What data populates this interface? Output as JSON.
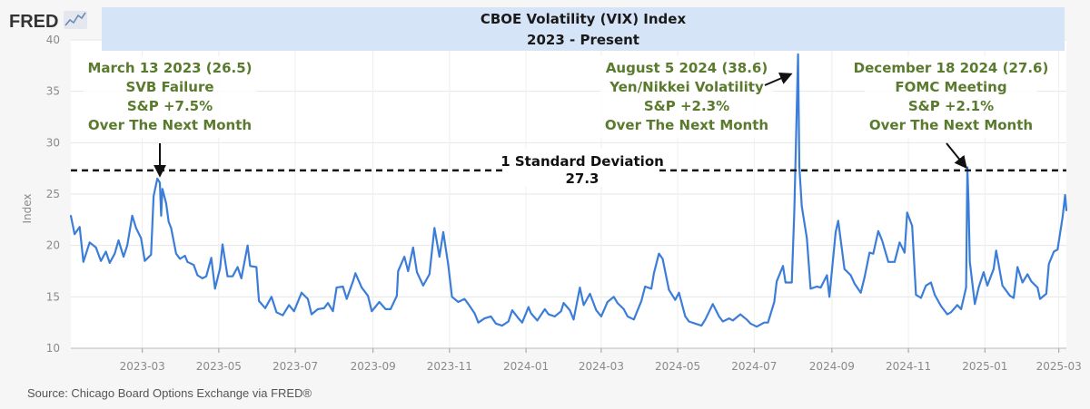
{
  "logo": {
    "text": "FRED"
  },
  "source": "Source: Chicago Board Options Exchange via FRED®",
  "chart_data": {
    "type": "line",
    "title": "CBOE Volatility (VIX) Index",
    "subtitle": "2023 - Present",
    "xlabel": "",
    "ylabel": "Index",
    "ylim": [
      10,
      40
    ],
    "xlim": [
      "2023-01-03",
      "2025-03-07"
    ],
    "yticks": [
      10,
      15,
      20,
      25,
      30,
      35,
      40
    ],
    "xticks": [
      {
        "date": "2023-03-01",
        "label": "2023-03"
      },
      {
        "date": "2023-05-01",
        "label": "2023-05"
      },
      {
        "date": "2023-07-01",
        "label": "2023-07"
      },
      {
        "date": "2023-09-01",
        "label": "2023-09"
      },
      {
        "date": "2023-11-01",
        "label": "2023-11"
      },
      {
        "date": "2024-01-01",
        "label": "2024-01"
      },
      {
        "date": "2024-03-01",
        "label": "2024-03"
      },
      {
        "date": "2024-05-01",
        "label": "2024-05"
      },
      {
        "date": "2024-07-01",
        "label": "2024-07"
      },
      {
        "date": "2024-09-01",
        "label": "2024-09"
      },
      {
        "date": "2024-11-01",
        "label": "2024-11"
      },
      {
        "date": "2025-01-01",
        "label": "2025-01"
      },
      {
        "date": "2025-03-01",
        "label": "2025-03"
      }
    ],
    "grid": true,
    "series": [
      {
        "name": "VIX",
        "color": "#3b7dd8",
        "points": [
          [
            "2023-01-03",
            22.9
          ],
          [
            "2023-01-06",
            21.1
          ],
          [
            "2023-01-10",
            21.8
          ],
          [
            "2023-01-13",
            18.4
          ],
          [
            "2023-01-18",
            20.3
          ],
          [
            "2023-01-23",
            19.8
          ],
          [
            "2023-01-27",
            18.5
          ],
          [
            "2023-01-31",
            19.4
          ],
          [
            "2023-02-03",
            18.3
          ],
          [
            "2023-02-07",
            19.2
          ],
          [
            "2023-02-10",
            20.5
          ],
          [
            "2023-02-14",
            18.9
          ],
          [
            "2023-02-17",
            20.0
          ],
          [
            "2023-02-21",
            22.9
          ],
          [
            "2023-02-24",
            21.7
          ],
          [
            "2023-02-28",
            20.7
          ],
          [
            "2023-03-03",
            18.5
          ],
          [
            "2023-03-08",
            19.1
          ],
          [
            "2023-03-10",
            24.8
          ],
          [
            "2023-03-13",
            26.5
          ],
          [
            "2023-03-15",
            26.1
          ],
          [
            "2023-03-16",
            22.9
          ],
          [
            "2023-03-17",
            25.5
          ],
          [
            "2023-03-20",
            24.1
          ],
          [
            "2023-03-22",
            22.3
          ],
          [
            "2023-03-24",
            21.7
          ],
          [
            "2023-03-28",
            19.2
          ],
          [
            "2023-03-31",
            18.7
          ],
          [
            "2023-04-04",
            19.0
          ],
          [
            "2023-04-06",
            18.4
          ],
          [
            "2023-04-11",
            18.1
          ],
          [
            "2023-04-14",
            17.1
          ],
          [
            "2023-04-18",
            16.8
          ],
          [
            "2023-04-21",
            17.0
          ],
          [
            "2023-04-25",
            18.8
          ],
          [
            "2023-04-28",
            15.8
          ],
          [
            "2023-05-02",
            17.8
          ],
          [
            "2023-05-04",
            20.1
          ],
          [
            "2023-05-08",
            17.0
          ],
          [
            "2023-05-12",
            17.0
          ],
          [
            "2023-05-16",
            17.9
          ],
          [
            "2023-05-19",
            16.8
          ],
          [
            "2023-05-24",
            20.0
          ],
          [
            "2023-05-26",
            18.0
          ],
          [
            "2023-05-31",
            17.9
          ],
          [
            "2023-06-02",
            14.6
          ],
          [
            "2023-06-07",
            13.9
          ],
          [
            "2023-06-12",
            15.0
          ],
          [
            "2023-06-16",
            13.5
          ],
          [
            "2023-06-21",
            13.2
          ],
          [
            "2023-06-26",
            14.2
          ],
          [
            "2023-06-30",
            13.6
          ],
          [
            "2023-07-06",
            15.4
          ],
          [
            "2023-07-11",
            14.8
          ],
          [
            "2023-07-14",
            13.3
          ],
          [
            "2023-07-19",
            13.8
          ],
          [
            "2023-07-24",
            13.9
          ],
          [
            "2023-07-27",
            14.4
          ],
          [
            "2023-07-31",
            13.6
          ],
          [
            "2023-08-03",
            15.9
          ],
          [
            "2023-08-08",
            16.0
          ],
          [
            "2023-08-11",
            14.8
          ],
          [
            "2023-08-16",
            16.5
          ],
          [
            "2023-08-18",
            17.3
          ],
          [
            "2023-08-23",
            15.9
          ],
          [
            "2023-08-28",
            15.1
          ],
          [
            "2023-08-31",
            13.6
          ],
          [
            "2023-09-06",
            14.5
          ],
          [
            "2023-09-11",
            13.8
          ],
          [
            "2023-09-15",
            13.8
          ],
          [
            "2023-09-20",
            15.1
          ],
          [
            "2023-09-21",
            17.5
          ],
          [
            "2023-09-26",
            18.9
          ],
          [
            "2023-09-29",
            17.5
          ],
          [
            "2023-10-03",
            19.8
          ],
          [
            "2023-10-06",
            17.4
          ],
          [
            "2023-10-11",
            16.1
          ],
          [
            "2023-10-16",
            17.2
          ],
          [
            "2023-10-20",
            21.7
          ],
          [
            "2023-10-24",
            18.9
          ],
          [
            "2023-10-27",
            21.3
          ],
          [
            "2023-10-31",
            18.1
          ],
          [
            "2023-11-03",
            15.0
          ],
          [
            "2023-11-08",
            14.5
          ],
          [
            "2023-11-13",
            14.8
          ],
          [
            "2023-11-16",
            14.3
          ],
          [
            "2023-11-21",
            13.4
          ],
          [
            "2023-11-24",
            12.5
          ],
          [
            "2023-11-29",
            12.9
          ],
          [
            "2023-12-04",
            13.1
          ],
          [
            "2023-12-08",
            12.4
          ],
          [
            "2023-12-13",
            12.2
          ],
          [
            "2023-12-18",
            12.6
          ],
          [
            "2023-12-21",
            13.7
          ],
          [
            "2023-12-26",
            12.9
          ],
          [
            "2023-12-29",
            12.5
          ],
          [
            "2024-01-03",
            14.0
          ],
          [
            "2024-01-05",
            13.4
          ],
          [
            "2024-01-10",
            12.7
          ],
          [
            "2024-01-16",
            13.8
          ],
          [
            "2024-01-19",
            13.3
          ],
          [
            "2024-01-24",
            13.1
          ],
          [
            "2024-01-29",
            13.6
          ],
          [
            "2024-01-31",
            14.4
          ],
          [
            "2024-02-05",
            13.7
          ],
          [
            "2024-02-08",
            12.8
          ],
          [
            "2024-02-13",
            15.9
          ],
          [
            "2024-02-16",
            14.2
          ],
          [
            "2024-02-21",
            15.3
          ],
          [
            "2024-02-26",
            13.7
          ],
          [
            "2024-03-01",
            13.1
          ],
          [
            "2024-03-06",
            14.5
          ],
          [
            "2024-03-11",
            15.0
          ],
          [
            "2024-03-14",
            14.4
          ],
          [
            "2024-03-19",
            13.8
          ],
          [
            "2024-03-22",
            13.1
          ],
          [
            "2024-03-27",
            12.8
          ],
          [
            "2024-04-02",
            14.6
          ],
          [
            "2024-04-05",
            16.0
          ],
          [
            "2024-04-10",
            15.8
          ],
          [
            "2024-04-12",
            17.3
          ],
          [
            "2024-04-16",
            19.2
          ],
          [
            "2024-04-19",
            18.7
          ],
          [
            "2024-04-24",
            15.7
          ],
          [
            "2024-04-29",
            14.7
          ],
          [
            "2024-05-02",
            15.4
          ],
          [
            "2024-05-07",
            13.1
          ],
          [
            "2024-05-10",
            12.6
          ],
          [
            "2024-05-15",
            12.4
          ],
          [
            "2024-05-20",
            12.2
          ],
          [
            "2024-05-23",
            12.8
          ],
          [
            "2024-05-29",
            14.3
          ],
          [
            "2024-06-03",
            13.1
          ],
          [
            "2024-06-06",
            12.6
          ],
          [
            "2024-06-11",
            12.9
          ],
          [
            "2024-06-14",
            12.7
          ],
          [
            "2024-06-20",
            13.3
          ],
          [
            "2024-06-25",
            12.8
          ],
          [
            "2024-06-28",
            12.4
          ],
          [
            "2024-07-03",
            12.1
          ],
          [
            "2024-07-09",
            12.5
          ],
          [
            "2024-07-12",
            12.5
          ],
          [
            "2024-07-17",
            14.5
          ],
          [
            "2024-07-19",
            16.5
          ],
          [
            "2024-07-24",
            18.0
          ],
          [
            "2024-07-26",
            16.4
          ],
          [
            "2024-07-31",
            16.4
          ],
          [
            "2024-08-02",
            23.4
          ],
          [
            "2024-08-05",
            38.6
          ],
          [
            "2024-08-06",
            27.7
          ],
          [
            "2024-08-08",
            23.8
          ],
          [
            "2024-08-12",
            20.7
          ],
          [
            "2024-08-15",
            15.8
          ],
          [
            "2024-08-20",
            16.0
          ],
          [
            "2024-08-23",
            15.9
          ],
          [
            "2024-08-28",
            17.1
          ],
          [
            "2024-08-30",
            15.0
          ],
          [
            "2024-09-04",
            21.3
          ],
          [
            "2024-09-06",
            22.4
          ],
          [
            "2024-09-11",
            17.7
          ],
          [
            "2024-09-16",
            17.1
          ],
          [
            "2024-09-19",
            16.3
          ],
          [
            "2024-09-24",
            15.4
          ],
          [
            "2024-09-27",
            16.9
          ],
          [
            "2024-10-01",
            19.3
          ],
          [
            "2024-10-04",
            19.2
          ],
          [
            "2024-10-08",
            21.4
          ],
          [
            "2024-10-11",
            20.5
          ],
          [
            "2024-10-16",
            18.4
          ],
          [
            "2024-10-21",
            18.4
          ],
          [
            "2024-10-25",
            20.3
          ],
          [
            "2024-10-29",
            19.3
          ],
          [
            "2024-10-31",
            23.2
          ],
          [
            "2024-11-04",
            21.9
          ],
          [
            "2024-11-07",
            15.2
          ],
          [
            "2024-11-11",
            14.9
          ],
          [
            "2024-11-15",
            16.1
          ],
          [
            "2024-11-19",
            16.4
          ],
          [
            "2024-11-22",
            15.2
          ],
          [
            "2024-11-27",
            14.1
          ],
          [
            "2024-12-02",
            13.3
          ],
          [
            "2024-12-05",
            13.5
          ],
          [
            "2024-12-10",
            14.2
          ],
          [
            "2024-12-13",
            13.8
          ],
          [
            "2024-12-17",
            15.9
          ],
          [
            "2024-12-18",
            27.6
          ],
          [
            "2024-12-19",
            24.1
          ],
          [
            "2024-12-20",
            18.4
          ],
          [
            "2024-12-24",
            14.3
          ],
          [
            "2024-12-27",
            15.9
          ],
          [
            "2024-12-31",
            17.4
          ],
          [
            "2025-01-03",
            16.1
          ],
          [
            "2025-01-08",
            17.7
          ],
          [
            "2025-01-10",
            19.5
          ],
          [
            "2025-01-15",
            16.1
          ],
          [
            "2025-01-21",
            15.1
          ],
          [
            "2025-01-24",
            14.9
          ],
          [
            "2025-01-27",
            17.9
          ],
          [
            "2025-01-31",
            16.4
          ],
          [
            "2025-02-04",
            17.2
          ],
          [
            "2025-02-07",
            16.5
          ],
          [
            "2025-02-12",
            15.9
          ],
          [
            "2025-02-14",
            14.8
          ],
          [
            "2025-02-19",
            15.3
          ],
          [
            "2025-02-21",
            18.2
          ],
          [
            "2025-02-25",
            19.4
          ],
          [
            "2025-02-28",
            19.6
          ],
          [
            "2025-03-04",
            22.8
          ],
          [
            "2025-03-06",
            24.9
          ],
          [
            "2025-03-07",
            23.4
          ]
        ]
      }
    ],
    "reference_line": {
      "value": 27.3,
      "label_line1": "1 Standard Deviation",
      "label_line2": "27.3"
    },
    "annotations": [
      {
        "lines": [
          "March 13 2023 (26.5)",
          "SVB Failure",
          "S&P +7.5%",
          "Over The Next Month"
        ],
        "point": [
          "2023-03-13",
          26.5
        ]
      },
      {
        "lines": [
          "August 5 2024 (38.6)",
          "Yen/Nikkei Volatility",
          "S&P +2.3%",
          "Over The Next Month"
        ],
        "point": [
          "2024-08-05",
          38.6
        ]
      },
      {
        "lines": [
          "December 18 2024 (27.6)",
          "FOMC Meeting",
          "S&P +2.1%",
          "Over The Next Month"
        ],
        "point": [
          "2024-12-18",
          27.6
        ]
      }
    ]
  }
}
